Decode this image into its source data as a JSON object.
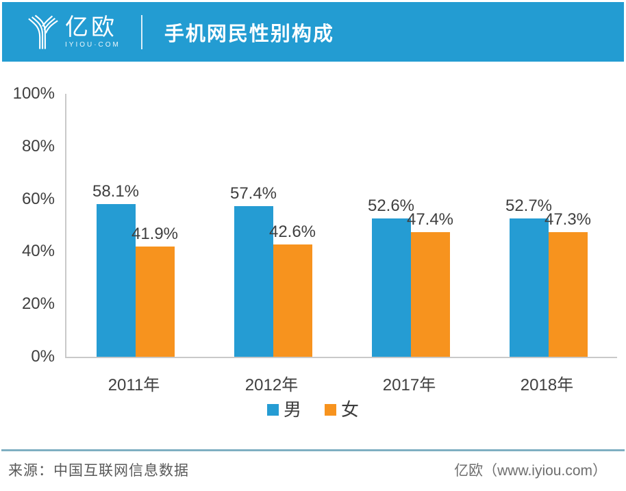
{
  "header": {
    "logo": {
      "brand_cn": "亿欧",
      "brand_en": "IYIOU·COM",
      "icon": "iyiou-y-logo-icon"
    },
    "title": "手机网民性别构成"
  },
  "chart_data": {
    "type": "bar",
    "title": "手机网民性别构成",
    "categories": [
      "2011年",
      "2012年",
      "2017年",
      "2018年"
    ],
    "series": [
      {
        "name": "男",
        "color": "#259CD3",
        "values": [
          58.1,
          57.4,
          52.6,
          52.7
        ]
      },
      {
        "name": "女",
        "color": "#F7931E",
        "values": [
          41.9,
          42.6,
          47.4,
          47.3
        ]
      }
    ],
    "value_suffix": "%",
    "y_ticks": [
      "0%",
      "20%",
      "40%",
      "60%",
      "80%",
      "100%"
    ],
    "ylim": [
      0,
      100
    ],
    "grid": false,
    "data_labels": true,
    "legend_position": "bottom"
  },
  "footer": {
    "source": "来源：中国互联网信息数据",
    "credit": "亿欧（www.iyiou.com）"
  },
  "colors": {
    "brand_blue": "#239CD2",
    "male_blue": "#259CD3",
    "female_orange": "#F7931E",
    "axis_gray": "#C9C9C9",
    "divider_blue": "#7FAFC2",
    "label_dark": "#3F3F3F",
    "footer_gray": "#595959"
  }
}
